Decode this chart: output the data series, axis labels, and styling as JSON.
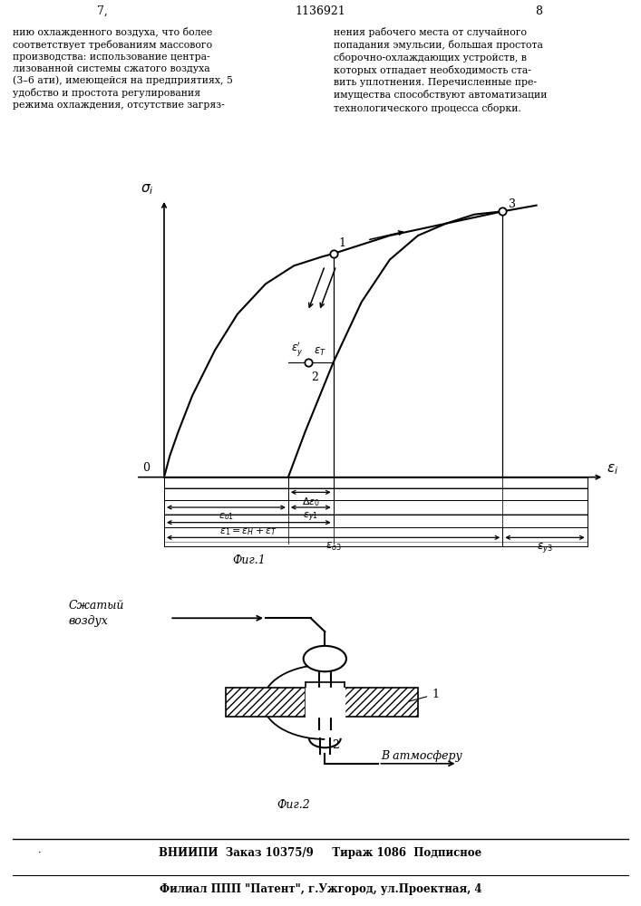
{
  "page_number_left": "7,",
  "patent_number": "1136921",
  "page_number_right": "8",
  "fig1_label": "Фиг.1",
  "fig2_label": "Фиг.2",
  "footer_line1": "ВНИИПИ  Заказ 10375/9     Тираж 1086  Подписное",
  "footer_line2": "Филиал ППП \"Патент\", г.Ужгород, ул.Проектная, 4",
  "compressed_air_label_line1": "Сжатый",
  "compressed_air_label_line2": "воздух",
  "atmosphere_label": "В атмосферу",
  "bg_color": "#ffffff"
}
